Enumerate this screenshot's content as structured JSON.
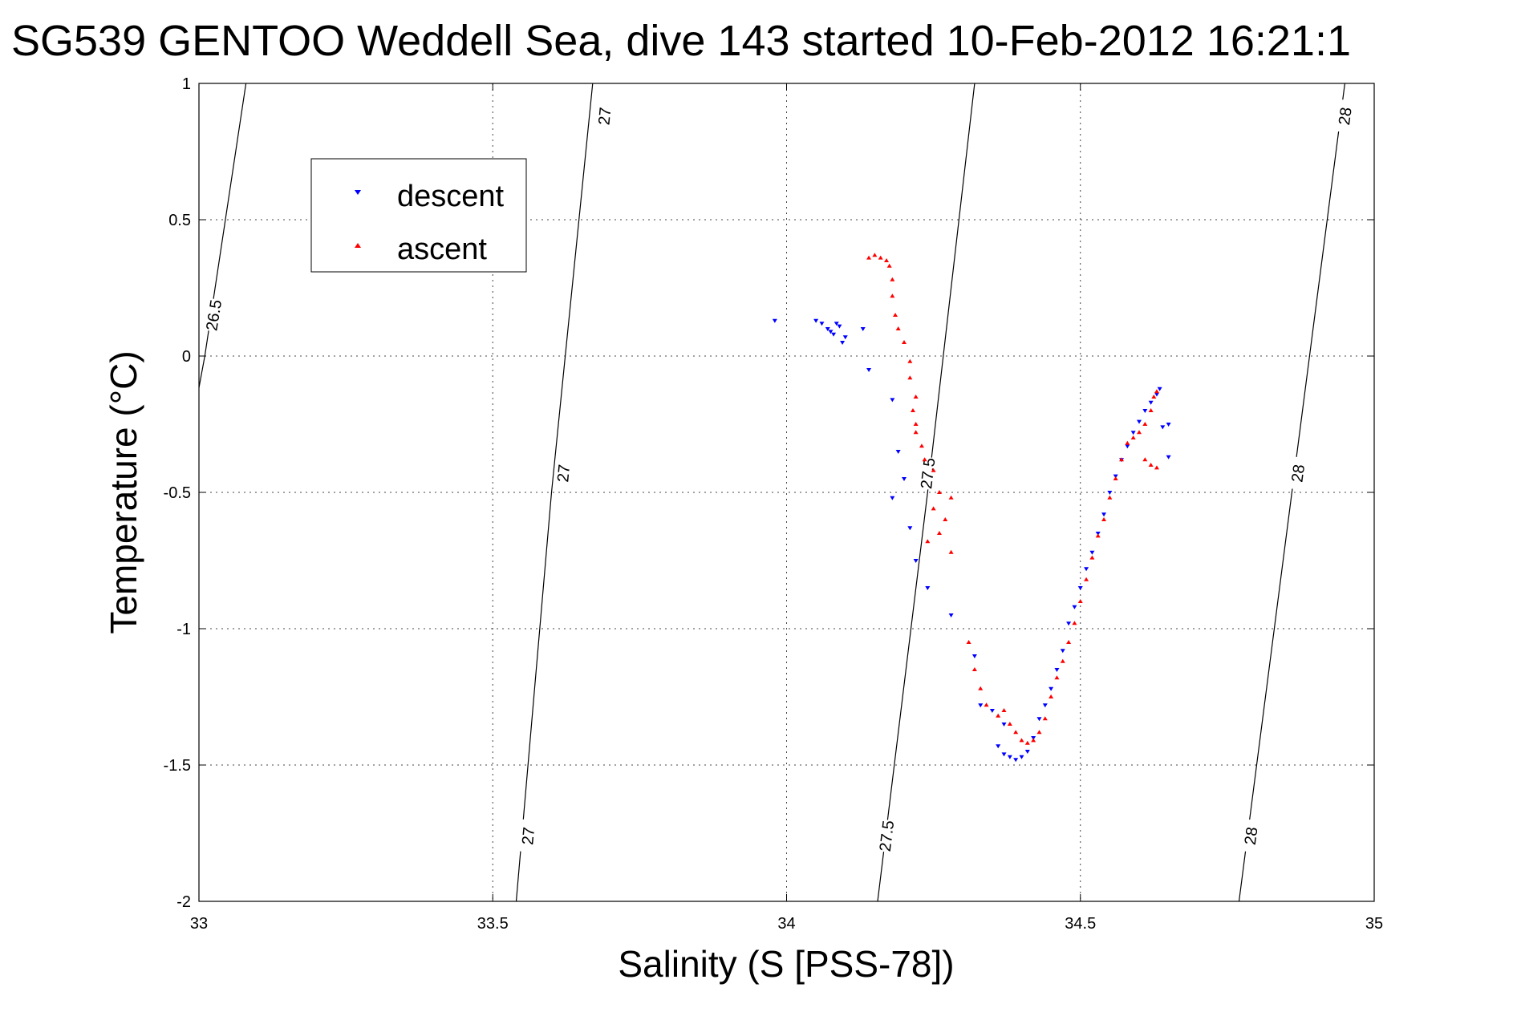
{
  "chart_data": {
    "type": "scatter",
    "title": "SG539 GENTOO Weddell Sea, dive 143 started 10-Feb-2012 16:21:1",
    "xlabel": "Salinity (S [PSS-78])",
    "ylabel": "Temperature (°C)",
    "xlim": [
      33,
      35
    ],
    "ylim": [
      -2,
      1
    ],
    "x_ticks": [
      33,
      33.5,
      34,
      34.5,
      35
    ],
    "x_tick_labels": [
      "33",
      "33.5",
      "34",
      "34.5",
      "35"
    ],
    "y_ticks": [
      1,
      0.5,
      0,
      -0.5,
      -1,
      -1.5,
      -2
    ],
    "y_tick_labels": [
      "1",
      "0.5",
      "0",
      "-0.5",
      "-1",
      "-1.5",
      "-2"
    ],
    "grid": true,
    "legend_position": "top-left",
    "density_contours": [
      {
        "label": "26.5",
        "points": [
          [
            33.08,
            1.0
          ],
          [
            33.01,
            0.0
          ],
          [
            32.98,
            -0.35
          ]
        ],
        "label_positions": [
          [
            33.025,
            0.15
          ]
        ]
      },
      {
        "label": "27",
        "points": [
          [
            33.67,
            1.0
          ],
          [
            33.6,
            -0.5
          ],
          [
            33.54,
            -2.0
          ]
        ],
        "label_positions": [
          [
            33.69,
            0.88
          ],
          [
            33.62,
            -0.43
          ],
          [
            33.56,
            -1.76
          ]
        ]
      },
      {
        "label": "27.5",
        "points": [
          [
            34.32,
            1.0
          ],
          [
            34.24,
            -0.5
          ],
          [
            34.155,
            -2.0
          ]
        ],
        "label_positions": [
          [
            34.24,
            -0.43
          ],
          [
            34.17,
            -1.76
          ]
        ]
      },
      {
        "label": "28",
        "points": [
          [
            34.95,
            1.0
          ],
          [
            34.86,
            -0.5
          ],
          [
            34.77,
            -2.0
          ]
        ],
        "label_positions": [
          [
            34.95,
            0.88
          ],
          [
            34.87,
            -0.43
          ],
          [
            34.79,
            -1.76
          ]
        ]
      }
    ],
    "series": [
      {
        "name": "descent",
        "color": "#0000ff",
        "marker": "triangle-down",
        "points": [
          [
            33.98,
            0.13
          ],
          [
            34.05,
            0.13
          ],
          [
            34.06,
            0.12
          ],
          [
            34.07,
            0.1
          ],
          [
            34.08,
            0.08
          ],
          [
            34.09,
            0.11
          ],
          [
            34.1,
            0.07
          ],
          [
            34.085,
            0.12
          ],
          [
            34.075,
            0.09
          ],
          [
            34.095,
            0.05
          ],
          [
            34.13,
            0.1
          ],
          [
            34.14,
            -0.05
          ],
          [
            34.18,
            -0.16
          ],
          [
            34.19,
            -0.35
          ],
          [
            34.2,
            -0.45
          ],
          [
            34.18,
            -0.52
          ],
          [
            34.21,
            -0.63
          ],
          [
            34.22,
            -0.75
          ],
          [
            34.24,
            -0.85
          ],
          [
            34.28,
            -0.95
          ],
          [
            34.32,
            -1.1
          ],
          [
            34.33,
            -1.28
          ],
          [
            34.35,
            -1.3
          ],
          [
            34.37,
            -1.35
          ],
          [
            34.36,
            -1.43
          ],
          [
            34.37,
            -1.46
          ],
          [
            34.38,
            -1.47
          ],
          [
            34.39,
            -1.48
          ],
          [
            34.4,
            -1.47
          ],
          [
            34.41,
            -1.45
          ],
          [
            34.42,
            -1.4
          ],
          [
            34.43,
            -1.33
          ],
          [
            34.44,
            -1.28
          ],
          [
            34.45,
            -1.22
          ],
          [
            34.46,
            -1.15
          ],
          [
            34.47,
            -1.08
          ],
          [
            34.48,
            -0.98
          ],
          [
            34.49,
            -0.92
          ],
          [
            34.5,
            -0.85
          ],
          [
            34.51,
            -0.78
          ],
          [
            34.52,
            -0.72
          ],
          [
            34.53,
            -0.65
          ],
          [
            34.54,
            -0.58
          ],
          [
            34.55,
            -0.5
          ],
          [
            34.56,
            -0.44
          ],
          [
            34.57,
            -0.38
          ],
          [
            34.58,
            -0.33
          ],
          [
            34.59,
            -0.28
          ],
          [
            34.6,
            -0.24
          ],
          [
            34.61,
            -0.2
          ],
          [
            34.62,
            -0.17
          ],
          [
            34.63,
            -0.14
          ],
          [
            34.635,
            -0.12
          ],
          [
            34.64,
            -0.26
          ],
          [
            34.65,
            -0.25
          ],
          [
            34.65,
            -0.37
          ]
        ]
      },
      {
        "name": "ascent",
        "color": "#ff0000",
        "marker": "triangle-up",
        "points": [
          [
            34.14,
            0.36
          ],
          [
            34.15,
            0.37
          ],
          [
            34.16,
            0.36
          ],
          [
            34.17,
            0.35
          ],
          [
            34.175,
            0.33
          ],
          [
            34.18,
            0.28
          ],
          [
            34.18,
            0.22
          ],
          [
            34.185,
            0.15
          ],
          [
            34.19,
            0.1
          ],
          [
            34.2,
            0.05
          ],
          [
            34.21,
            -0.02
          ],
          [
            34.21,
            -0.08
          ],
          [
            34.22,
            -0.15
          ],
          [
            34.215,
            -0.2
          ],
          [
            34.22,
            -0.25
          ],
          [
            34.22,
            -0.28
          ],
          [
            34.23,
            -0.33
          ],
          [
            34.235,
            -0.38
          ],
          [
            34.25,
            -0.42
          ],
          [
            34.26,
            -0.5
          ],
          [
            34.28,
            -0.52
          ],
          [
            34.25,
            -0.56
          ],
          [
            34.27,
            -0.6
          ],
          [
            34.26,
            -0.65
          ],
          [
            34.24,
            -0.68
          ],
          [
            34.28,
            -0.72
          ],
          [
            34.31,
            -1.05
          ],
          [
            34.32,
            -1.15
          ],
          [
            34.33,
            -1.22
          ],
          [
            34.34,
            -1.28
          ],
          [
            34.36,
            -1.32
          ],
          [
            34.37,
            -1.3
          ],
          [
            34.38,
            -1.35
          ],
          [
            34.39,
            -1.38
          ],
          [
            34.4,
            -1.41
          ],
          [
            34.41,
            -1.42
          ],
          [
            34.42,
            -1.41
          ],
          [
            34.43,
            -1.38
          ],
          [
            34.44,
            -1.33
          ],
          [
            34.45,
            -1.25
          ],
          [
            34.46,
            -1.18
          ],
          [
            34.47,
            -1.12
          ],
          [
            34.48,
            -1.05
          ],
          [
            34.49,
            -0.98
          ],
          [
            34.5,
            -0.9
          ],
          [
            34.51,
            -0.82
          ],
          [
            34.52,
            -0.74
          ],
          [
            34.53,
            -0.66
          ],
          [
            34.54,
            -0.6
          ],
          [
            34.55,
            -0.52
          ],
          [
            34.56,
            -0.45
          ],
          [
            34.57,
            -0.38
          ],
          [
            34.58,
            -0.32
          ],
          [
            34.59,
            -0.3
          ],
          [
            34.6,
            -0.28
          ],
          [
            34.61,
            -0.25
          ],
          [
            34.62,
            -0.2
          ],
          [
            34.625,
            -0.15
          ],
          [
            34.63,
            -0.13
          ],
          [
            34.62,
            -0.4
          ],
          [
            34.61,
            -0.38
          ],
          [
            34.63,
            -0.41
          ]
        ]
      }
    ]
  }
}
